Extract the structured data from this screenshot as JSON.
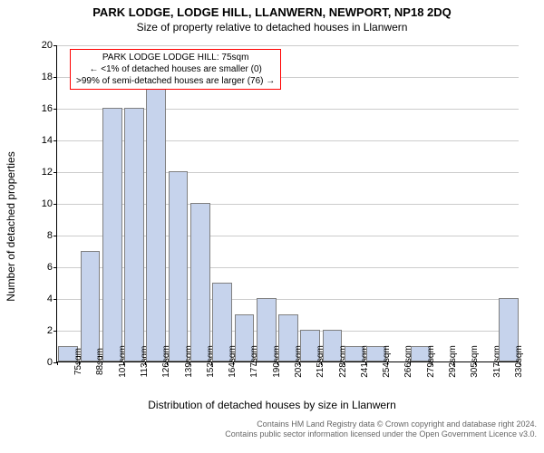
{
  "title": "PARK LODGE, LODGE HILL, LLANWERN, NEWPORT, NP18 2DQ",
  "subtitle": "Size of property relative to detached houses in Llanwern",
  "y_axis_label": "Number of detached properties",
  "x_axis_label": "Distribution of detached houses by size in Llanwern",
  "chart": {
    "type": "histogram",
    "y_max": 20,
    "y_ticks": [
      0,
      2,
      4,
      6,
      8,
      10,
      12,
      14,
      16,
      18,
      20
    ],
    "x_ticks": [
      "75sqm",
      "88sqm",
      "101sqm",
      "113sqm",
      "126sqm",
      "139sqm",
      "152sqm",
      "164sqm",
      "177sqm",
      "190sqm",
      "203sqm",
      "215sqm",
      "228sqm",
      "241sqm",
      "254sqm",
      "266sqm",
      "279sqm",
      "292sqm",
      "305sqm",
      "317sqm",
      "330sqm"
    ],
    "values": [
      1,
      7,
      16,
      16,
      18,
      12,
      10,
      5,
      3,
      4,
      3,
      2,
      2,
      1,
      1,
      0,
      1,
      0,
      0,
      0,
      4
    ],
    "bar_fill": "#c6d3ec",
    "bar_stroke": "#808080",
    "grid_color": "#cccccc",
    "background": "#ffffff"
  },
  "annotation": {
    "line1": "PARK LODGE LODGE HILL: 75sqm",
    "line2": "← <1% of detached houses are smaller (0)",
    "line3": ">99% of semi-detached houses are larger (76) →",
    "border_color": "#ff0000"
  },
  "footer": {
    "line1": "Contains HM Land Registry data © Crown copyright and database right 2024.",
    "line2": "Contains public sector information licensed under the Open Government Licence v3.0.",
    "color": "#666666"
  }
}
